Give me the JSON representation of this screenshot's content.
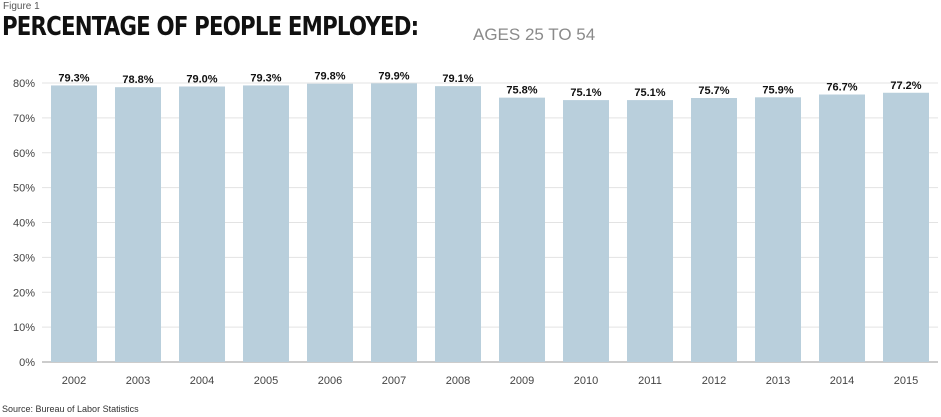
{
  "figure_label": "Figure 1",
  "title": "PERCENTAGE OF PEOPLE EMPLOYED:",
  "subtitle": "AGES 25 TO 54",
  "source": "Source: Bureau of Labor Statistics",
  "colors": {
    "bar": "#b9cfdc",
    "grid": "#e3e3e3",
    "axis": "#999999"
  },
  "chart_data": {
    "type": "bar",
    "title": "PERCENTAGE OF PEOPLE EMPLOYED:",
    "subtitle": "AGES 25 TO 54",
    "xlabel": "",
    "ylabel": "",
    "ylim": [
      0,
      80
    ],
    "yticks": [
      0,
      10,
      20,
      30,
      40,
      50,
      60,
      70,
      80
    ],
    "ytick_labels": [
      "0%",
      "10%",
      "20%",
      "30%",
      "40%",
      "50%",
      "60%",
      "70%",
      "80%"
    ],
    "grid": true,
    "categories": [
      "2002",
      "2003",
      "2004",
      "2005",
      "2006",
      "2007",
      "2008",
      "2009",
      "2010",
      "2011",
      "2012",
      "2013",
      "2014",
      "2015"
    ],
    "values": [
      79.3,
      78.8,
      79.0,
      79.3,
      79.8,
      79.9,
      79.1,
      75.8,
      75.1,
      75.1,
      75.7,
      75.9,
      76.7,
      77.2
    ],
    "data_labels": [
      "79.3%",
      "78.8%",
      "79.0%",
      "79.3%",
      "79.8%",
      "79.9%",
      "79.1%",
      "75.8%",
      "75.1%",
      "75.1%",
      "75.7%",
      "75.9%",
      "76.7%",
      "77.2%"
    ]
  }
}
